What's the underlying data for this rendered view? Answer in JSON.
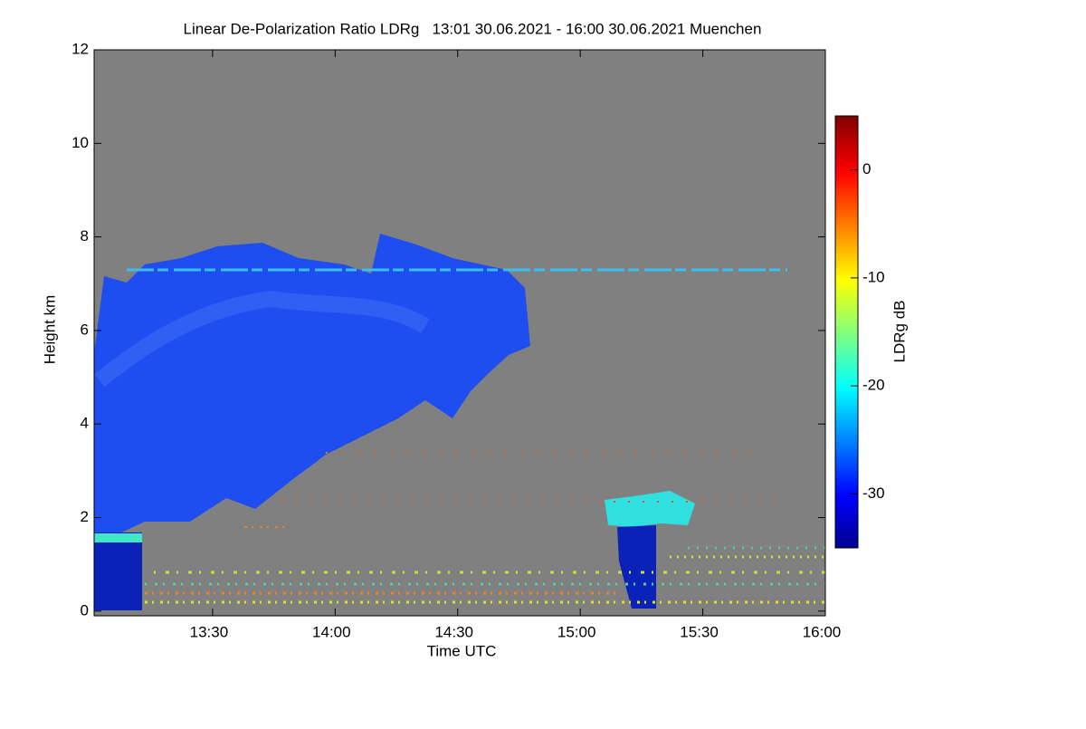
{
  "chart_data": {
    "type": "heatmap",
    "title": "Linear De-Polarization Ratio LDRg   13:01 30.06.2021 - 16:00 30.06.2021 Muenchen",
    "x_label": "Time UTC",
    "y_label": "Height km",
    "xlim": [
      781,
      960
    ],
    "xticks": [
      {
        "value": 810,
        "label": "13:30"
      },
      {
        "value": 840,
        "label": "14:00"
      },
      {
        "value": 870,
        "label": "14:30"
      },
      {
        "value": 900,
        "label": "15:00"
      },
      {
        "value": 930,
        "label": "15:30"
      },
      {
        "value": 960,
        "label": "16:00"
      }
    ],
    "ylim": [
      -0.1,
      12
    ],
    "yticks": [
      0,
      2,
      4,
      6,
      8,
      10,
      12
    ],
    "colorbar": {
      "label": "LDRg dB",
      "lim": [
        -35,
        5
      ],
      "ticks": [
        0,
        -10,
        -20,
        -30
      ]
    }
  }
}
